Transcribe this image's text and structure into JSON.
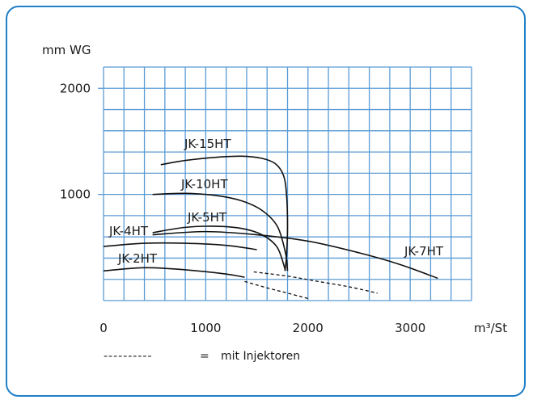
{
  "chart_data": {
    "type": "line",
    "ylabel": "mm WG",
    "xlabel": "m³/St",
    "xlim": [
      0,
      3600
    ],
    "ylim": [
      0,
      2200
    ],
    "x_ticks": [
      "0",
      "1000",
      "2000",
      "3000"
    ],
    "y_ticks": [
      "1000",
      "2000"
    ],
    "grid": true,
    "series": [
      {
        "name": "JK-15HT",
        "x": [
          560,
          800,
          1100,
          1350,
          1550,
          1680,
          1760,
          1790,
          1800,
          1790,
          1775
        ],
        "y": [
          1280,
          1320,
          1350,
          1360,
          1340,
          1290,
          1180,
          1000,
          700,
          420,
          280
        ]
      },
      {
        "name": "JK-10HT",
        "x": [
          480,
          800,
          1100,
          1350,
          1550,
          1700,
          1780,
          1800
        ],
        "y": [
          1000,
          1010,
          990,
          940,
          850,
          700,
          450,
          280
        ]
      },
      {
        "name": "JK-5HT",
        "x": [
          480,
          800,
          1100,
          1350,
          1550,
          1700,
          1780
        ],
        "y": [
          640,
          690,
          700,
          680,
          620,
          500,
          280
        ]
      },
      {
        "name": "JK-7HT",
        "x": [
          480,
          1000,
          1500,
          2000,
          2500,
          2900,
          3270
        ],
        "y": [
          620,
          650,
          620,
          560,
          450,
          340,
          210
        ]
      },
      {
        "name": "JK-4HT",
        "x": [
          0,
          400,
          800,
          1200,
          1500
        ],
        "y": [
          510,
          540,
          540,
          520,
          480
        ]
      },
      {
        "name": "JK-2HT",
        "x": [
          0,
          400,
          800,
          1200,
          1380
        ],
        "y": [
          280,
          310,
          290,
          250,
          220
        ]
      }
    ],
    "injector_series": [
      {
        "x": [
          1470,
          1800,
          2100,
          2400,
          2680
        ],
        "y": [
          270,
          230,
          180,
          130,
          70
        ]
      },
      {
        "x": [
          1380,
          1600,
          1800,
          2000
        ],
        "y": [
          180,
          120,
          70,
          20
        ]
      }
    ],
    "legend": {
      "dashes": "----------",
      "equals": "=",
      "text": "mit Injektoren"
    }
  }
}
